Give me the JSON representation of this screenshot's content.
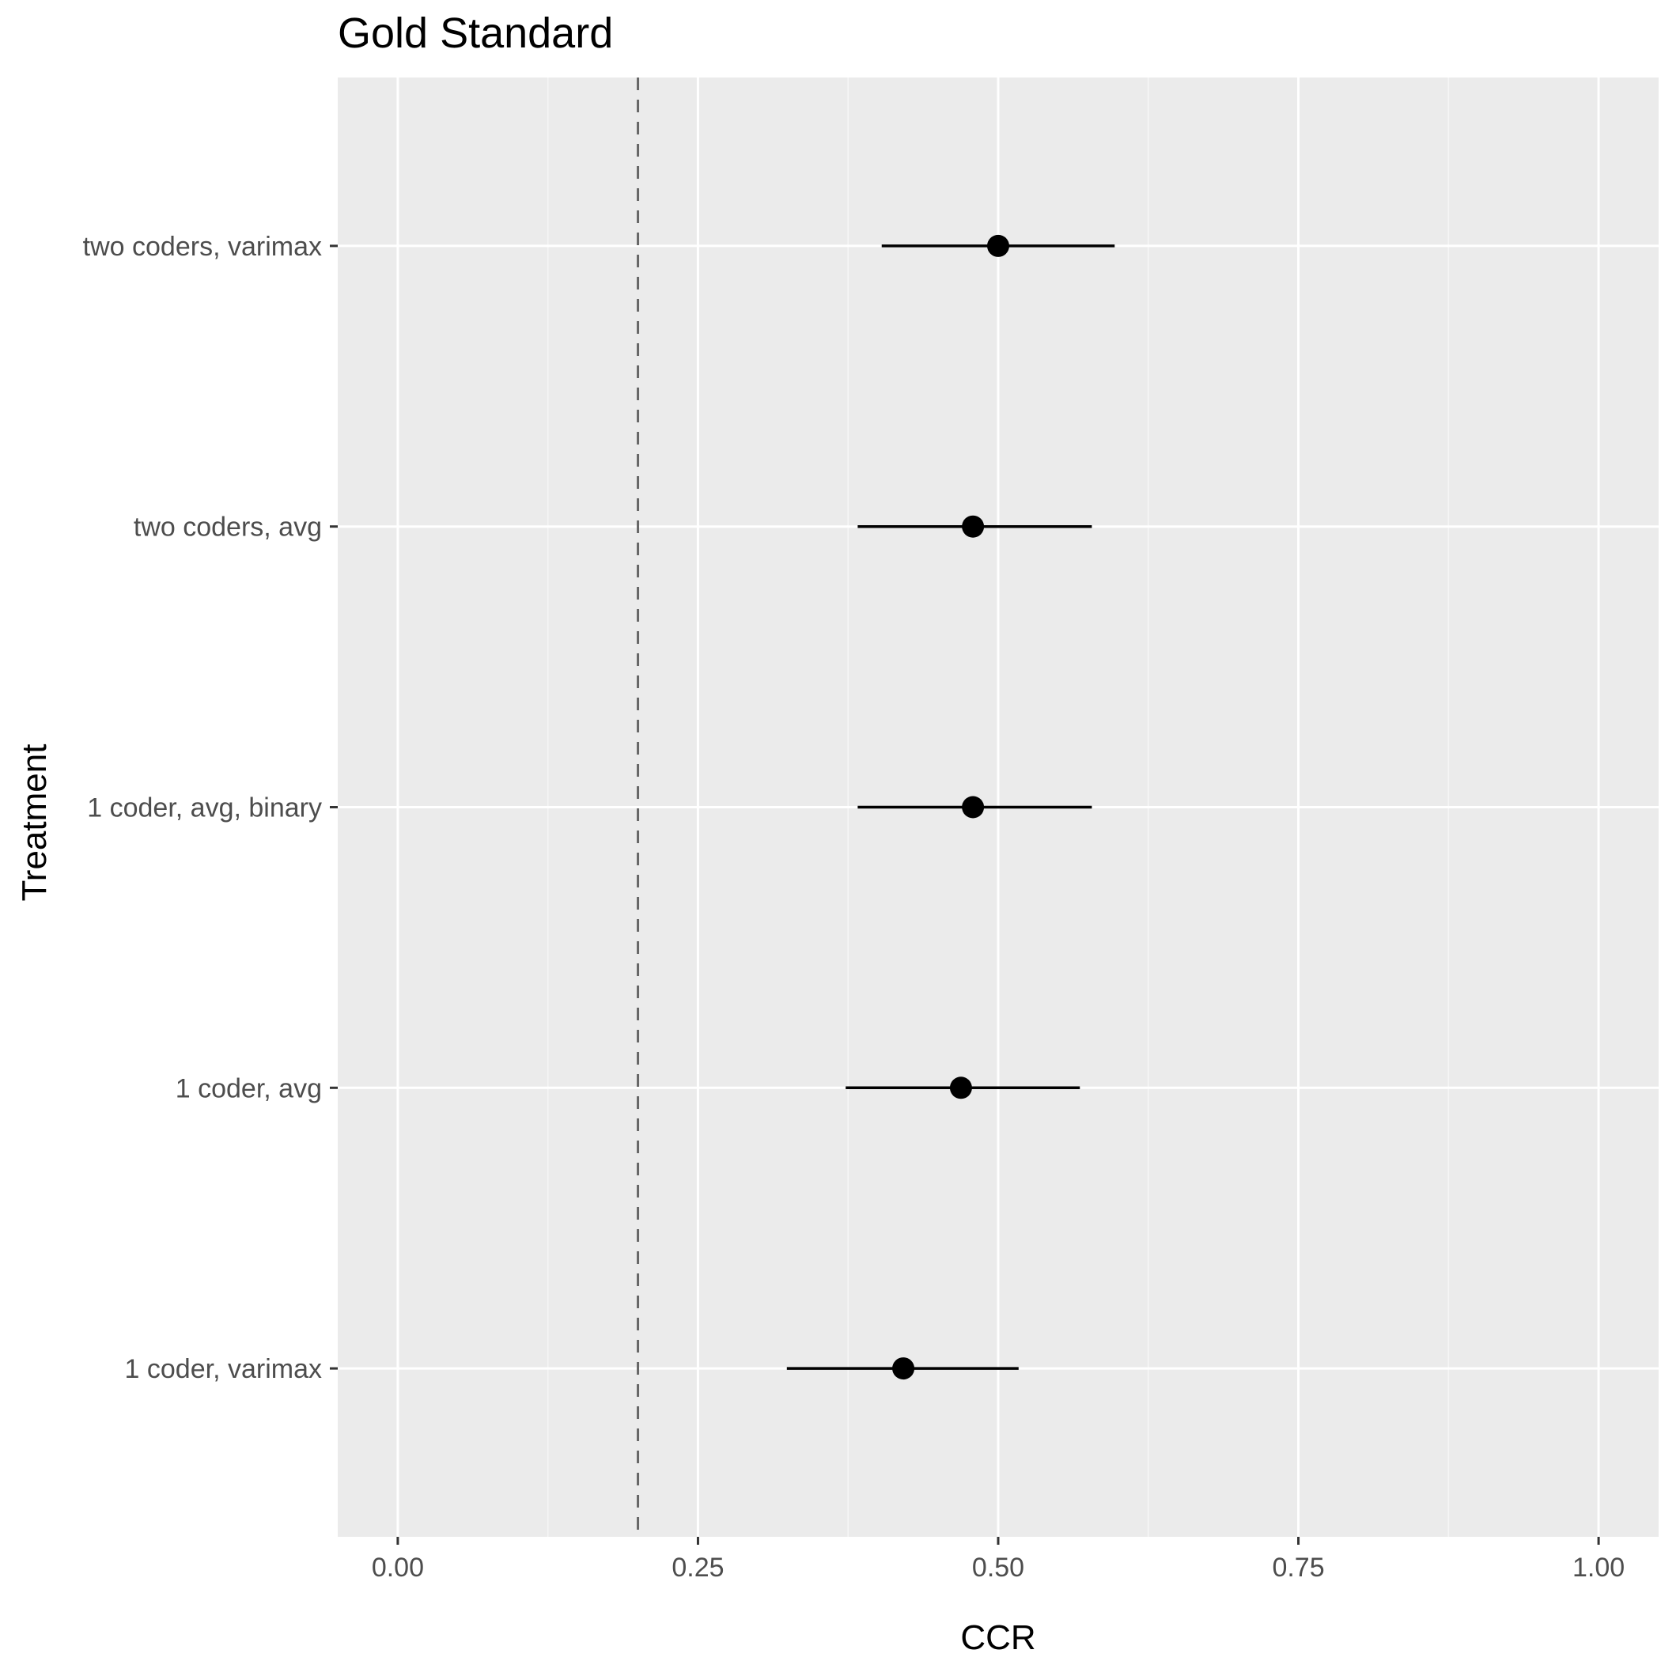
{
  "chart_data": {
    "type": "scatter",
    "title": "Gold Standard",
    "xlabel": "CCR",
    "ylabel": "Treatment",
    "xlim": [
      -0.05,
      1.05
    ],
    "x_ticks": [
      0.0,
      0.25,
      0.5,
      0.75,
      1.0
    ],
    "x_tick_labels": [
      "0.00",
      "0.25",
      "0.50",
      "0.75",
      "1.00"
    ],
    "categories": [
      "1 coder, varimax",
      "1 coder, avg",
      "1 coder, avg, binary",
      "two coders, avg",
      "two coders, varimax"
    ],
    "points": [
      {
        "category": "1 coder, varimax",
        "estimate": 0.421,
        "lower": 0.324,
        "upper": 0.517
      },
      {
        "category": "1 coder, avg",
        "estimate": 0.469,
        "lower": 0.373,
        "upper": 0.568
      },
      {
        "category": "1 coder, avg, binary",
        "estimate": 0.479,
        "lower": 0.383,
        "upper": 0.578
      },
      {
        "category": "two coders, avg",
        "estimate": 0.479,
        "lower": 0.383,
        "upper": 0.578
      },
      {
        "category": "two coders, varimax",
        "estimate": 0.5,
        "lower": 0.403,
        "upper": 0.597
      }
    ],
    "reference_line": {
      "x": 0.2,
      "style": "dashed",
      "color": "#666666"
    },
    "grid": true,
    "legend": "none",
    "colors": {
      "panel_background": "#ebebeb",
      "grid_major": "#ffffff",
      "grid_minor": "#f5f5f5",
      "point": "#000000",
      "errorbar": "#000000",
      "tick": "#333333",
      "tick_label": "#4d4d4d"
    }
  }
}
